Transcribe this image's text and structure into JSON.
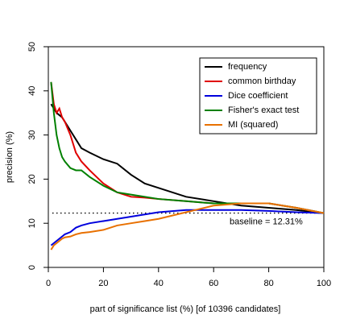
{
  "chart_data": {
    "type": "line",
    "xlabel": "part of significance list (%) [of 10396 candidates]",
    "ylabel": "precision (%)",
    "x": [
      1,
      2,
      3,
      4,
      5,
      6,
      8,
      10,
      12,
      15,
      20,
      25,
      30,
      35,
      40,
      50,
      60,
      70,
      80,
      90,
      100
    ],
    "series": [
      {
        "name": "frequency",
        "color": "#000000",
        "values": [
          37,
          36,
          35,
          34.5,
          34,
          33,
          31,
          29,
          27,
          26,
          24.5,
          23.5,
          21,
          19,
          18,
          16,
          15,
          14,
          13.5,
          13,
          12.3
        ]
      },
      {
        "name": "common birthday",
        "color": "#e00000",
        "values": [
          42,
          37,
          35,
          36,
          34,
          33,
          30,
          26,
          24,
          22,
          19,
          17,
          16,
          15.8,
          15.5,
          15,
          14.5,
          14.5,
          14.5,
          13.5,
          12.3
        ]
      },
      {
        "name": "Dice coefficient",
        "color": "#0000dd",
        "values": [
          5,
          5.5,
          6,
          6.5,
          7,
          7.5,
          8,
          9,
          9.5,
          10,
          10.5,
          11,
          11.5,
          12,
          12.5,
          13,
          13,
          13,
          12.8,
          12.5,
          12.3
        ]
      },
      {
        "name": "Fisher's exact test",
        "color": "#008000",
        "values": [
          42,
          35,
          30,
          27,
          25,
          24,
          22.5,
          22,
          22,
          20.5,
          18.5,
          17,
          16.5,
          16,
          15.5,
          15,
          14.5,
          14.5,
          14.5,
          13.5,
          12.3
        ]
      },
      {
        "name": "MI (squared)",
        "color": "#e87000",
        "values": [
          4,
          5,
          5.5,
          6,
          6.5,
          6.8,
          7,
          7.5,
          7.8,
          8,
          8.5,
          9.5,
          10,
          10.5,
          11,
          12.5,
          14,
          14.5,
          14.5,
          13.5,
          12.3
        ]
      }
    ],
    "baseline": 12.31,
    "baseline_label": "baseline = 12.31%",
    "xlim": [
      0,
      100
    ],
    "xticks": [
      0,
      20,
      40,
      60,
      80,
      100
    ],
    "ylim": [
      0,
      50
    ],
    "yticks": [
      0,
      10,
      20,
      30,
      40,
      50
    ],
    "legend": "top-right"
  }
}
